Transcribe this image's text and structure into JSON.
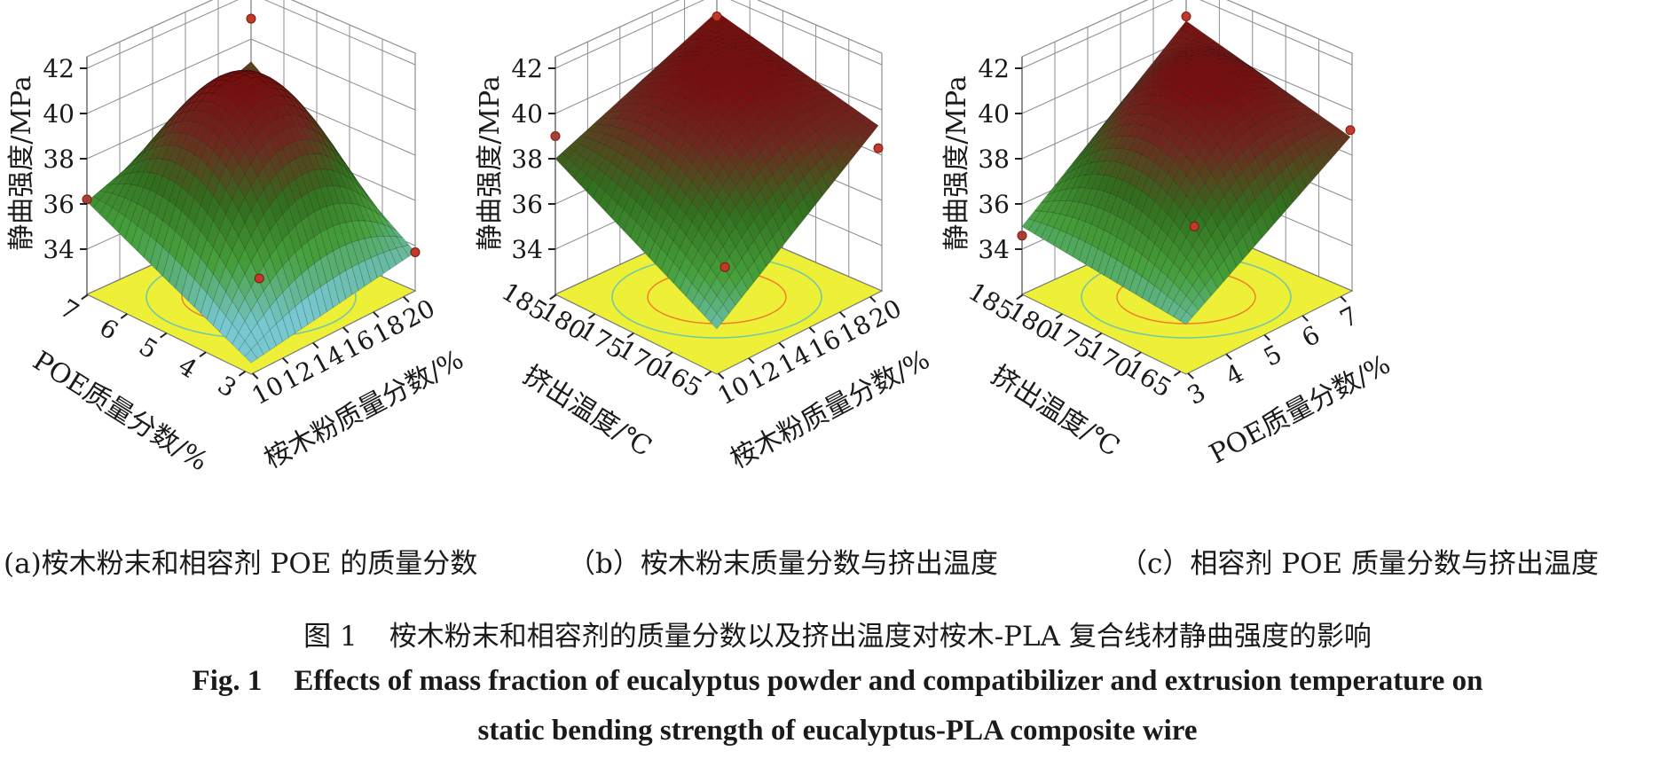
{
  "colors": {
    "floor": "#eef037",
    "floor_edge": "#c2c840",
    "contour_outer": "#74c8a4",
    "contour_inner": "#f07a2c",
    "point": "#c0392b",
    "grid": "#8c8c8c",
    "surface_low": "#5ab8c8",
    "surface_mid": "#3a7a1e",
    "surface_high": "#7a1414"
  },
  "chart_data": [
    {
      "type": "surface",
      "panel": "a",
      "caption": "(a)桉木粉末和相容剂 POE 的质量分数",
      "zlabel": "静曲强度/MPa",
      "zticks": [
        "42",
        "40",
        "38",
        "36",
        "34"
      ],
      "zlim": [
        32,
        42
      ],
      "x_axis": {
        "label": "POE质量分数/%",
        "ticks": [
          "7",
          "6",
          "5",
          "4",
          "3"
        ]
      },
      "y_axis": {
        "label": "桉木粉质量分数/%",
        "ticks": [
          "10",
          "12",
          "14",
          "16",
          "18",
          "20"
        ]
      },
      "surface": {
        "center": 40.9,
        "corners": {
          "left": 36.1,
          "right": 34.1,
          "front": 32.5,
          "back": 39.0
        }
      },
      "points": [
        {
          "corner": "back",
          "z": 40.9
        },
        {
          "corner": "left",
          "z": 36.2
        },
        {
          "corner": "right",
          "z": 34.1
        },
        {
          "corner": "front",
          "z": 33.0
        }
      ]
    },
    {
      "type": "surface",
      "panel": "b",
      "caption": "（b）桉木粉末质量分数与挤出温度",
      "zlabel": "静曲强度/MPa",
      "zticks": [
        "42",
        "40",
        "38",
        "36",
        "34"
      ],
      "zlim": [
        32,
        42
      ],
      "x_axis": {
        "label": "挤出温度/℃",
        "ticks": [
          "185",
          "180",
          "175",
          "170",
          "165"
        ]
      },
      "y_axis": {
        "label": "桉木粉质量分数/%",
        "ticks": [
          "10",
          "12",
          "14",
          "16",
          "18",
          "20"
        ]
      },
      "surface": {
        "center": 40.8,
        "corners": {
          "left": 38.0,
          "right": 39.7,
          "front": 34.0,
          "back": 41.2
        }
      },
      "points": [
        {
          "corner": "back",
          "z": 41.0
        },
        {
          "corner": "left",
          "z": 39.0
        },
        {
          "corner": "right",
          "z": 38.7
        },
        {
          "corner": "front",
          "z": 33.5
        }
      ]
    },
    {
      "type": "surface",
      "panel": "c",
      "caption": "（c）相容剂 POE 质量分数与挤出温度",
      "zlabel": "静曲强度/MPa",
      "zticks": [
        "42",
        "40",
        "38",
        "36",
        "34"
      ],
      "zlim": [
        32,
        42
      ],
      "x_axis": {
        "label": "挤出温度/℃",
        "ticks": [
          "185",
          "180",
          "175",
          "170",
          "165"
        ]
      },
      "y_axis": {
        "label": "POE质量分数/%",
        "ticks": [
          "3",
          "4",
          "5",
          "6",
          "7"
        ]
      },
      "surface": {
        "center": 40.9,
        "corners": {
          "left": 35.0,
          "right": 39.2,
          "front": 34.2,
          "back": 40.8
        }
      },
      "points": [
        {
          "corner": "back",
          "z": 41.0
        },
        {
          "corner": "left",
          "z": 34.6
        },
        {
          "corner": "right",
          "z": 39.5
        },
        {
          "corner": "front",
          "z": 35.3
        }
      ]
    }
  ],
  "figure": {
    "title_cn_label": "图 1",
    "title_cn": "桉木粉末和相容剂的质量分数以及挤出温度对桉木-PLA 复合线材静曲强度的影响",
    "title_en_label": "Fig. 1",
    "title_en_line1": "Effects of mass fraction of eucalyptus powder and compatibilizer and extrusion temperature on",
    "title_en_line2": "static bending strength of eucalyptus-PLA composite wire"
  }
}
